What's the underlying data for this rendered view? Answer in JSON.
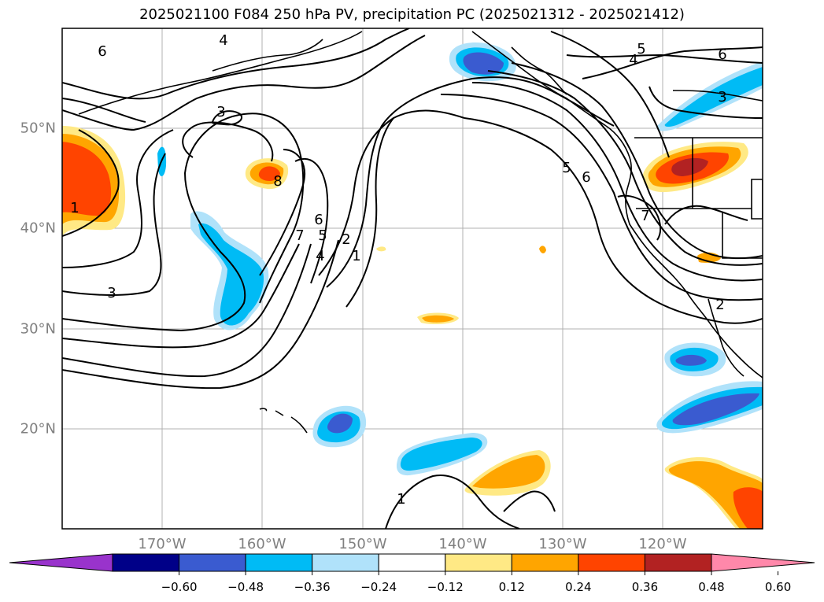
{
  "title": "2025021100 F084 250 hPa PV, precipitation PC (2025021312 - 2025021412)",
  "lon_labels": [
    "170°W",
    "160°W",
    "150°W",
    "140°W",
    "130°W",
    "120°W"
  ],
  "lat_labels": [
    "50°N",
    "40°N",
    "30°N",
    "20°N"
  ],
  "contour_labels": [
    "6",
    "4",
    "5",
    "4",
    "6",
    "3",
    "3",
    "8",
    "6",
    "7",
    "5",
    "4",
    "2",
    "1",
    "5",
    "6",
    "7",
    "2",
    "3",
    "1",
    "1"
  ],
  "colorbar": {
    "ticks": [
      "−0.60",
      "−0.48",
      "−0.36",
      "−0.24",
      "−0.12",
      "0.12",
      "0.24",
      "0.36",
      "0.48",
      "0.60"
    ],
    "colors": [
      "#9933cc",
      "#000088",
      "#3a5bd0",
      "#00bbf5",
      "#b0e2fa",
      "#ffffff",
      "#ffe985",
      "#ffa500",
      "#ff4400",
      "#b22222",
      "#ff88aa"
    ]
  }
}
